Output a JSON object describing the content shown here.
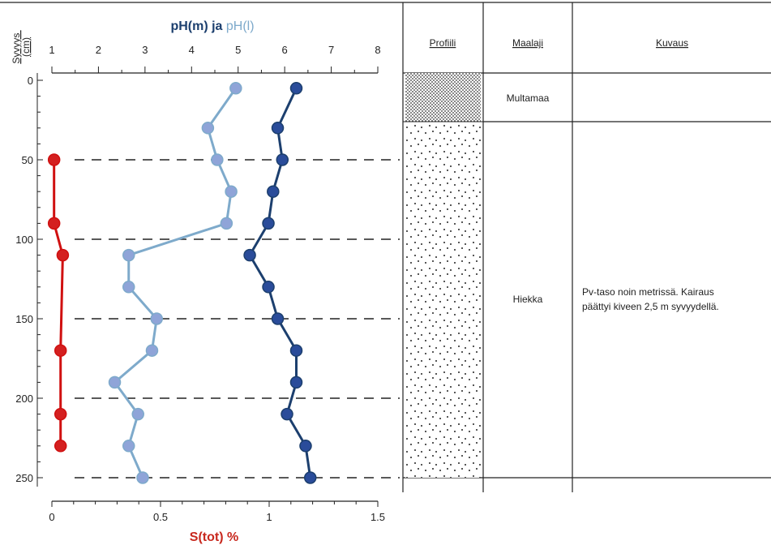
{
  "chart_data": {
    "type": "line",
    "orientation": "vertical-depth-profile",
    "depth_axis": {
      "label_line1": "Syvyys",
      "label_line2": "(cm)",
      "range": [
        0,
        250
      ],
      "ticks": [
        0,
        50,
        100,
        150,
        200,
        250
      ],
      "inverted": true
    },
    "top_axis": {
      "title_part1": "pH(m) ja ",
      "title_part2": "pH(l)",
      "range": [
        1,
        8
      ],
      "ticks": [
        1,
        2,
        3,
        4,
        5,
        6,
        7,
        8
      ]
    },
    "bottom_axis": {
      "label": "S(tot) %",
      "range": [
        0,
        1.5
      ],
      "ticks": [
        0,
        0.5,
        1,
        1.5
      ],
      "tick_labels": [
        "0",
        "0.5",
        "1",
        "1.5"
      ]
    },
    "dashed_reference_depths": [
      50,
      100,
      150,
      200,
      250
    ],
    "series": [
      {
        "name": "pH(m)",
        "axis": "top",
        "color": "#1c3f6e",
        "marker_color": "#2a4c9a",
        "points": [
          {
            "depth": 5,
            "value": 6.25
          },
          {
            "depth": 30,
            "value": 5.85
          },
          {
            "depth": 50,
            "value": 5.95
          },
          {
            "depth": 70,
            "value": 5.75
          },
          {
            "depth": 90,
            "value": 5.65
          },
          {
            "depth": 110,
            "value": 5.25
          },
          {
            "depth": 130,
            "value": 5.65
          },
          {
            "depth": 150,
            "value": 5.85
          },
          {
            "depth": 170,
            "value": 6.25
          },
          {
            "depth": 190,
            "value": 6.25
          },
          {
            "depth": 210,
            "value": 6.05
          },
          {
            "depth": 230,
            "value": 6.45
          },
          {
            "depth": 250,
            "value": 6.55
          }
        ]
      },
      {
        "name": "pH(l)",
        "axis": "top",
        "color": "#7eaacb",
        "marker_color": "#8fa4d8",
        "points": [
          {
            "depth": 5,
            "value": 4.95
          },
          {
            "depth": 30,
            "value": 4.35
          },
          {
            "depth": 50,
            "value": 4.55
          },
          {
            "depth": 70,
            "value": 4.85
          },
          {
            "depth": 90,
            "value": 4.75
          },
          {
            "depth": 110,
            "value": 2.65
          },
          {
            "depth": 130,
            "value": 2.65
          },
          {
            "depth": 150,
            "value": 3.25
          },
          {
            "depth": 170,
            "value": 3.15
          },
          {
            "depth": 190,
            "value": 2.35
          },
          {
            "depth": 210,
            "value": 2.85
          },
          {
            "depth": 230,
            "value": 2.65
          },
          {
            "depth": 250,
            "value": 2.95
          }
        ]
      },
      {
        "name": "S(tot) %",
        "axis": "bottom",
        "color": "#d01010",
        "marker_color": "#d42020",
        "points": [
          {
            "depth": 50,
            "value": 0.01
          },
          {
            "depth": 90,
            "value": 0.01
          },
          {
            "depth": 110,
            "value": 0.05
          },
          {
            "depth": 170,
            "value": 0.04
          },
          {
            "depth": 210,
            "value": 0.04
          },
          {
            "depth": 230,
            "value": 0.04
          }
        ]
      }
    ]
  },
  "table": {
    "headers": {
      "profile": "Profiili",
      "soil": "Maalaji",
      "description": "Kuvaus"
    },
    "layers": [
      {
        "from_depth": 0,
        "to_depth": 15,
        "soil": "Multamaa",
        "description_line1": "",
        "description_line2": "",
        "pattern": "dense-dots"
      },
      {
        "from_depth": 15,
        "to_depth": 250,
        "soil": "Hiekka",
        "description_line1": "Pv-taso noin metrissä. Kairaus",
        "description_line2": "päättyi kiveen 2,5 m syvyydellä.",
        "pattern": "sparse-dots"
      }
    ]
  },
  "colors": {
    "background": "#f9f3e6",
    "panel": "#ffffff",
    "gridline": "#222222",
    "ph_m_title": "#1c3f6e",
    "ph_l_title": "#7eaacb",
    "s_tot_title": "#c8281e"
  }
}
